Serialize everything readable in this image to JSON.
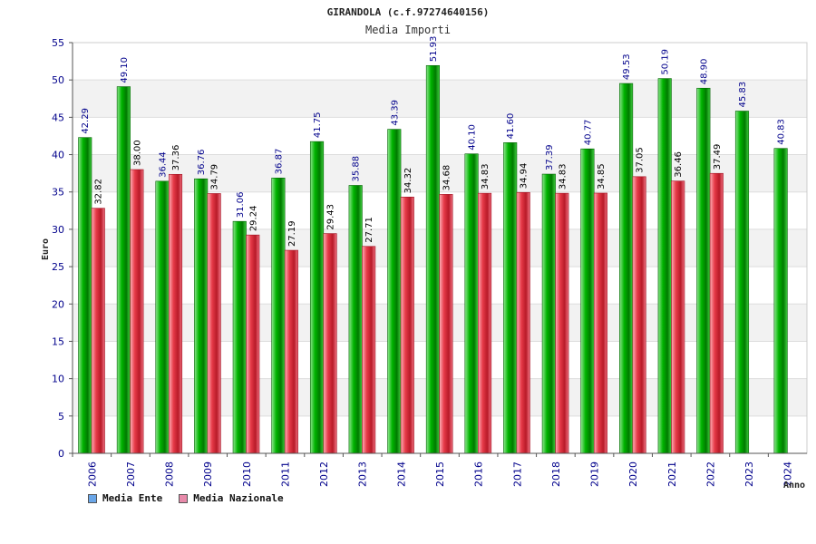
{
  "chart_data": {
    "type": "bar",
    "title": "GIRANDOLA (c.f.97274640156)",
    "subtitle": "Media Importi",
    "ylabel": "Euro",
    "xlabel": "Anno",
    "ylim": [
      0,
      55
    ],
    "yticks": [
      0,
      5,
      10,
      15,
      20,
      25,
      30,
      35,
      40,
      45,
      50,
      55
    ],
    "categories": [
      "2006",
      "2007",
      "2008",
      "2009",
      "2010",
      "2011",
      "2012",
      "2013",
      "2014",
      "2015",
      "2016",
      "2017",
      "2018",
      "2019",
      "2020",
      "2021",
      "2022",
      "2023",
      "2024"
    ],
    "series": [
      {
        "name": "Media Ente",
        "color": "#00a000",
        "values": [
          42.29,
          49.1,
          36.44,
          36.76,
          31.06,
          36.87,
          41.75,
          35.88,
          43.39,
          51.93,
          40.1,
          41.6,
          37.39,
          40.77,
          49.53,
          50.19,
          48.9,
          45.83,
          40.83
        ],
        "labels": [
          "42.29",
          "49.10",
          "36.44",
          "36.76",
          "31.06",
          "36.87",
          "41.75",
          "35.88",
          "43.39",
          "51.93",
          "40.10",
          "41.60",
          "37.39",
          "40.77",
          "49.53",
          "50.19",
          "48.90",
          "45.83",
          "40.83"
        ]
      },
      {
        "name": "Media Nazionale",
        "color": "#e03040",
        "values": [
          32.82,
          38.0,
          37.36,
          34.79,
          29.24,
          27.19,
          29.43,
          27.71,
          34.32,
          34.68,
          34.83,
          34.94,
          34.83,
          34.85,
          37.05,
          36.46,
          37.49,
          null,
          null
        ],
        "labels": [
          "32.82",
          "38.00",
          "37.36",
          "34.79",
          "29.24",
          "27.19",
          "29.43",
          "27.71",
          "34.32",
          "34.68",
          "34.83",
          "34.94",
          "34.83",
          "34.85",
          "37.05",
          "36.46",
          "37.49",
          "",
          ""
        ]
      }
    ],
    "legend": {
      "position": "bottom-left",
      "items": [
        {
          "label": "Media Ente",
          "color": "#6aa6e8"
        },
        {
          "label": "Media Nazionale",
          "color": "#e88aaa"
        }
      ]
    },
    "grid": true
  }
}
